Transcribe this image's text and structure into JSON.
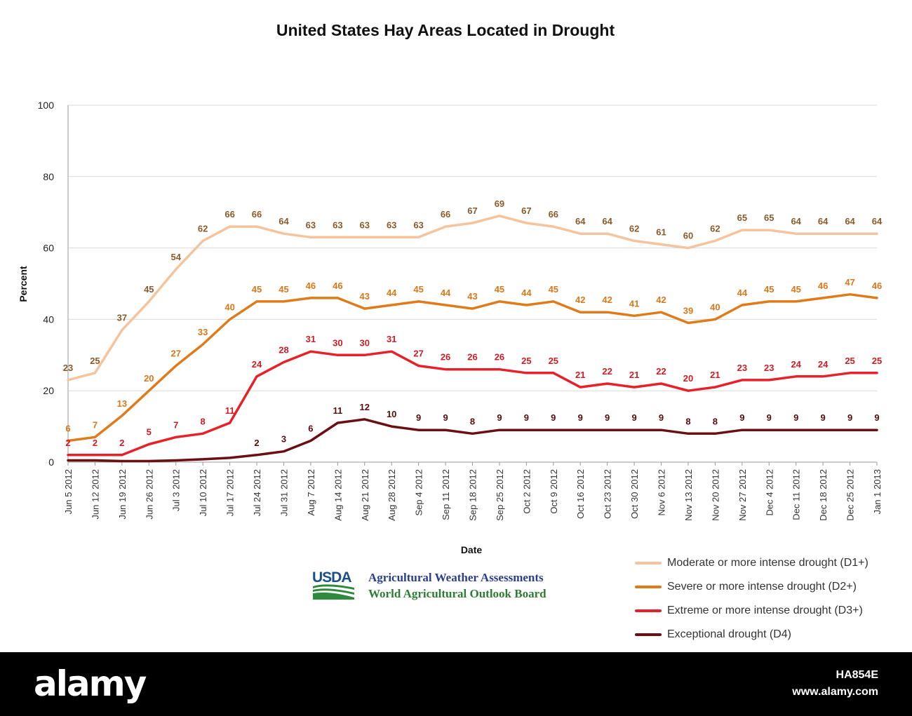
{
  "chart_data": {
    "type": "line",
    "title": "United States Hay Areas Located in Drought",
    "xlabel": "Date",
    "ylabel": "Percent",
    "ylim": [
      0,
      100
    ],
    "yticks": [
      0,
      20,
      40,
      60,
      80,
      100
    ],
    "grid": true,
    "legend_position": "bottom-right",
    "categories": [
      "Jun 5 2012",
      "Jun 12 2012",
      "Jun 19 2012",
      "Jun 26 2012",
      "Jul 3 2012",
      "Jul 10 2012",
      "Jul 17 2012",
      "Jul 24 2012",
      "Jul 31 2012",
      "Aug 7 2012",
      "Aug 14 2012",
      "Aug 21 2012",
      "Aug 28 2012",
      "Sep 4 2012",
      "Sep 11 2012",
      "Sep 18 2012",
      "Sep 25 2012",
      "Oct 2 2012",
      "Oct 9 2012",
      "Oct 16 2012",
      "Oct 23 2012",
      "Oct 30 2012",
      "Nov 6 2012",
      "Nov 13 2012",
      "Nov 20 2012",
      "Nov 27 2012",
      "Dec 4 2012",
      "Dec 11 2012",
      "Dec 18 2012",
      "Dec 25 2012",
      "Jan 1 2013"
    ],
    "series": [
      {
        "name": "Moderate or more intense drought (D1+)",
        "color": "#f5c49c",
        "label_color": "#8b5a2b",
        "values": [
          23,
          25,
          37,
          45,
          54,
          62,
          66,
          66,
          64,
          63,
          63,
          63,
          63,
          63,
          66,
          67,
          69,
          67,
          66,
          64,
          64,
          62,
          61,
          60,
          62,
          65,
          65,
          64,
          64,
          64,
          64
        ]
      },
      {
        "name": "Severe or more intense drought (D2+)",
        "color": "#e07b1a",
        "label_color": "#d9771a",
        "values": [
          6,
          7,
          13,
          20,
          27,
          33,
          40,
          45,
          45,
          46,
          46,
          43,
          44,
          45,
          44,
          43,
          45,
          44,
          45,
          42,
          42,
          41,
          42,
          39,
          40,
          44,
          45,
          45,
          46,
          47,
          46
        ]
      },
      {
        "name": "Extreme or more intense drought (D3+)",
        "color": "#e8202a",
        "label_color": "#d01c24",
        "values": [
          2,
          2,
          2,
          5,
          7,
          8,
          11,
          24,
          28,
          31,
          30,
          30,
          31,
          27,
          26,
          26,
          26,
          25,
          25,
          21,
          22,
          21,
          22,
          20,
          21,
          23,
          23,
          24,
          24,
          25,
          25
        ]
      },
      {
        "name": "Exceptional drought (D4)",
        "color": "#6b0f12",
        "label_color": "#5a0c0e",
        "values": [
          0.5,
          0.5,
          0.3,
          0.3,
          0.5,
          0.8,
          1.2,
          2,
          3,
          6,
          11,
          12,
          10,
          9,
          9,
          8,
          9,
          9,
          9,
          9,
          9,
          9,
          9,
          8,
          8,
          9,
          9,
          9,
          9,
          9,
          9
        ],
        "shown_labels": [
          null,
          null,
          null,
          null,
          null,
          null,
          null,
          "2",
          "3",
          "6",
          "11",
          "12",
          "10",
          "9",
          "9",
          "8",
          "9",
          "9",
          "9",
          "9",
          "9",
          "9",
          "9",
          "8",
          "8",
          "9",
          "9",
          "9",
          "9",
          "9",
          "9"
        ]
      }
    ]
  },
  "logo": {
    "usda": "USDA",
    "line1": "Agricultural Weather Assessments",
    "line2": "World Agricultural Outlook Board"
  },
  "watermark": {
    "brand": "alamy",
    "image_id": "HA854E",
    "url": "www.alamy.com"
  }
}
